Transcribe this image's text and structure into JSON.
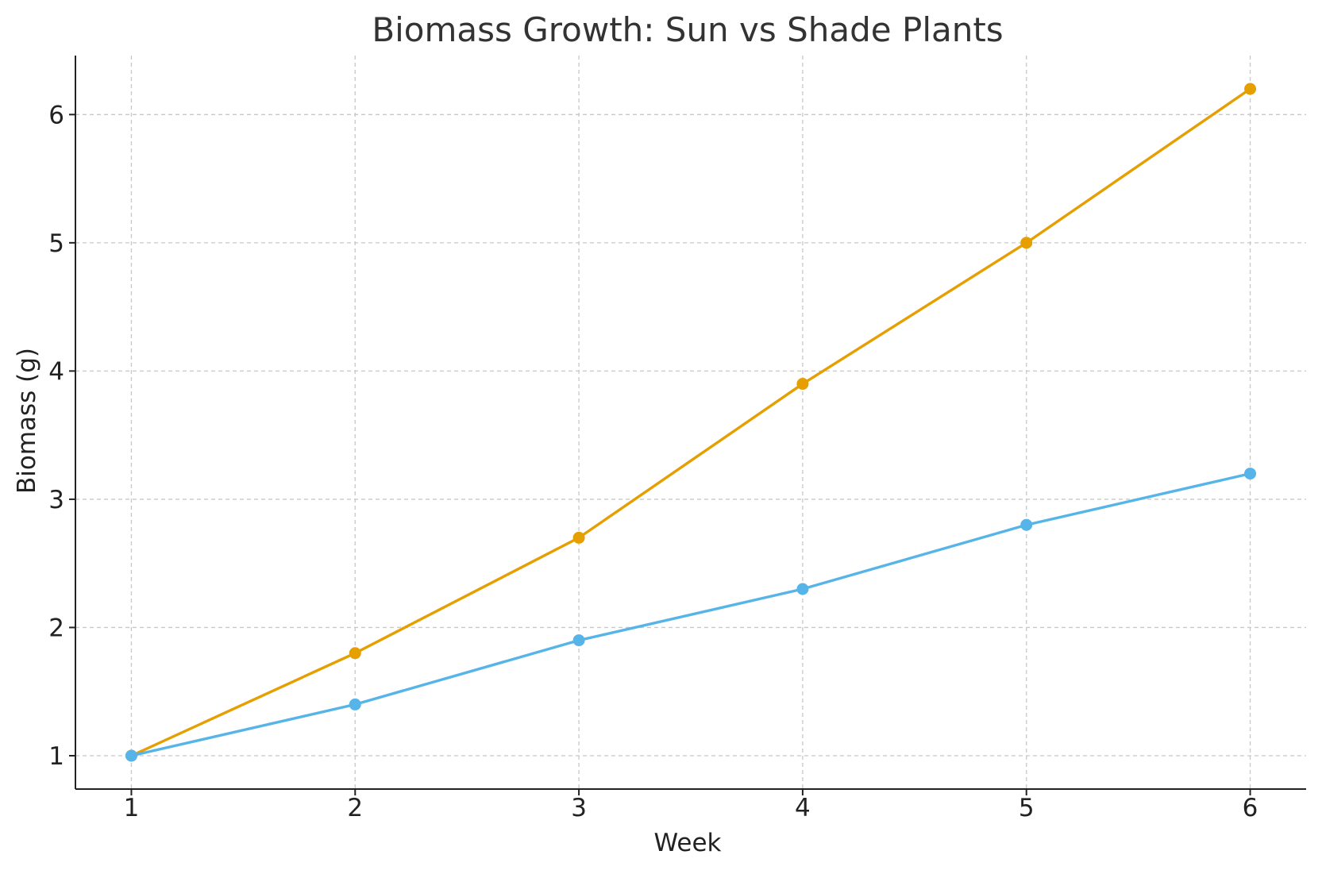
{
  "chart_data": {
    "type": "line",
    "title": "Biomass Growth: Sun vs Shade Plants",
    "xlabel": "Week",
    "ylabel": "Biomass (g)",
    "x": [
      1,
      2,
      3,
      4,
      5,
      6
    ],
    "xticks": [
      "1",
      "2",
      "3",
      "4",
      "5",
      "6"
    ],
    "yticks": [
      "1",
      "2",
      "3",
      "4",
      "5",
      "6"
    ],
    "xlim": [
      0.75,
      6.25
    ],
    "ylim": [
      0.74,
      6.46
    ],
    "grid": true,
    "legend": "none",
    "series": [
      {
        "color": "#E69F00",
        "values": [
          1.0,
          1.8,
          2.7,
          3.9,
          5.0,
          6.2
        ]
      },
      {
        "color": "#56B4E9",
        "values": [
          1.0,
          1.4,
          1.9,
          2.3,
          2.8,
          3.2
        ]
      }
    ]
  }
}
